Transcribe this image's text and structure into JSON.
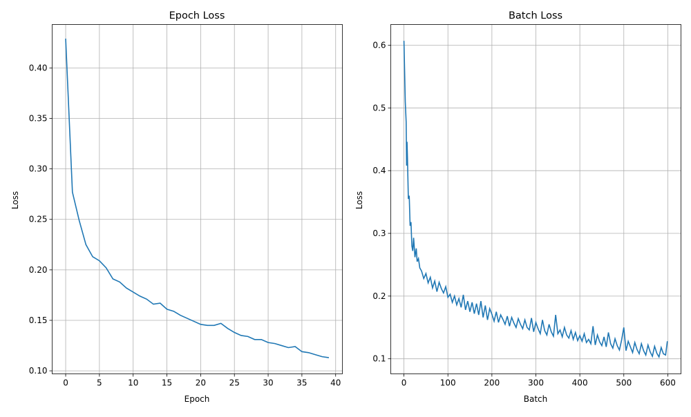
{
  "chart_data": [
    {
      "type": "line",
      "title": "Epoch Loss",
      "xlabel": "Epoch",
      "ylabel": "Loss",
      "xlim": [
        -2,
        41
      ],
      "ylim": [
        0.097,
        0.443
      ],
      "xticks": [
        0,
        5,
        10,
        15,
        20,
        25,
        30,
        35,
        40
      ],
      "xtick_labels": [
        "0",
        "5",
        "10",
        "15",
        "20",
        "25",
        "30",
        "35",
        "40"
      ],
      "yticks": [
        0.1,
        0.15,
        0.2,
        0.25,
        0.3,
        0.35,
        0.4
      ],
      "ytick_labels": [
        "0.10",
        "0.15",
        "0.20",
        "0.25",
        "0.30",
        "0.35",
        "0.40"
      ],
      "grid": true,
      "color": "#1f77b4",
      "series": [
        {
          "x": [
            0,
            1,
            2,
            3,
            4,
            5,
            6,
            7,
            8,
            9,
            10,
            11,
            12,
            13,
            14,
            15,
            16,
            17,
            18,
            19,
            20,
            21,
            22,
            23,
            24,
            25,
            26,
            27,
            28,
            29,
            30,
            31,
            32,
            33,
            34,
            35,
            36,
            37,
            38,
            39
          ],
          "values": [
            0.429,
            0.277,
            0.249,
            0.225,
            0.213,
            0.209,
            0.202,
            0.191,
            0.188,
            0.182,
            0.178,
            0.174,
            0.171,
            0.166,
            0.167,
            0.161,
            0.159,
            0.155,
            0.152,
            0.149,
            0.146,
            0.145,
            0.145,
            0.147,
            0.142,
            0.138,
            0.135,
            0.134,
            0.131,
            0.131,
            0.128,
            0.127,
            0.125,
            0.123,
            0.124,
            0.119,
            0.118,
            0.116,
            0.114,
            0.113
          ]
        }
      ]
    },
    {
      "type": "line",
      "title": "Batch Loss",
      "xlabel": "Batch",
      "ylabel": "Loss",
      "xlim": [
        -30,
        630
      ],
      "ylim": [
        0.076,
        0.633
      ],
      "xticks": [
        0,
        100,
        200,
        300,
        400,
        500,
        600
      ],
      "xtick_labels": [
        "0",
        "100",
        "200",
        "300",
        "400",
        "500",
        "600"
      ],
      "yticks": [
        0.1,
        0.2,
        0.3,
        0.4,
        0.5,
        0.6
      ],
      "ytick_labels": [
        "0.1",
        "0.2",
        "0.3",
        "0.4",
        "0.5",
        "0.6"
      ],
      "grid": true,
      "color": "#1f77b4",
      "series": [
        {
          "x": [
            0,
            3,
            5,
            6,
            7,
            8,
            10,
            12,
            14,
            16,
            18,
            20,
            22,
            25,
            28,
            30,
            33,
            36,
            40,
            45,
            50,
            55,
            60,
            65,
            70,
            75,
            80,
            85,
            90,
            95,
            100,
            105,
            110,
            115,
            120,
            125,
            130,
            135,
            140,
            145,
            150,
            155,
            160,
            165,
            170,
            175,
            180,
            185,
            190,
            195,
            200,
            205,
            210,
            215,
            220,
            225,
            230,
            235,
            240,
            245,
            250,
            255,
            260,
            265,
            270,
            275,
            280,
            285,
            290,
            295,
            300,
            305,
            310,
            315,
            320,
            325,
            330,
            335,
            340,
            345,
            350,
            355,
            360,
            365,
            370,
            375,
            380,
            385,
            390,
            395,
            400,
            405,
            410,
            415,
            420,
            425,
            430,
            435,
            440,
            445,
            450,
            455,
            460,
            465,
            470,
            475,
            480,
            485,
            490,
            495,
            500,
            505,
            510,
            515,
            520,
            525,
            530,
            535,
            540,
            545,
            550,
            555,
            560,
            565,
            570,
            575,
            580,
            585,
            590,
            595,
            599
          ],
          "values": [
            0.607,
            0.51,
            0.478,
            0.408,
            0.446,
            0.42,
            0.355,
            0.36,
            0.312,
            0.318,
            0.28,
            0.272,
            0.293,
            0.262,
            0.276,
            0.255,
            0.26,
            0.245,
            0.24,
            0.228,
            0.236,
            0.221,
            0.23,
            0.213,
            0.224,
            0.207,
            0.222,
            0.212,
            0.205,
            0.215,
            0.198,
            0.203,
            0.19,
            0.2,
            0.186,
            0.196,
            0.182,
            0.202,
            0.178,
            0.192,
            0.175,
            0.19,
            0.172,
            0.188,
            0.17,
            0.192,
            0.166,
            0.185,
            0.162,
            0.18,
            0.171,
            0.16,
            0.175,
            0.158,
            0.17,
            0.163,
            0.155,
            0.168,
            0.152,
            0.166,
            0.157,
            0.15,
            0.164,
            0.155,
            0.148,
            0.162,
            0.15,
            0.146,
            0.165,
            0.143,
            0.158,
            0.148,
            0.14,
            0.162,
            0.145,
            0.138,
            0.155,
            0.143,
            0.136,
            0.17,
            0.14,
            0.146,
            0.135,
            0.15,
            0.138,
            0.133,
            0.145,
            0.131,
            0.142,
            0.129,
            0.137,
            0.128,
            0.14,
            0.126,
            0.131,
            0.124,
            0.152,
            0.122,
            0.138,
            0.127,
            0.121,
            0.135,
            0.119,
            0.142,
            0.124,
            0.117,
            0.132,
            0.121,
            0.114,
            0.13,
            0.15,
            0.113,
            0.128,
            0.119,
            0.11,
            0.126,
            0.115,
            0.108,
            0.124,
            0.113,
            0.106,
            0.122,
            0.111,
            0.104,
            0.12,
            0.109,
            0.103,
            0.118,
            0.108,
            0.106,
            0.128
          ]
        }
      ]
    }
  ]
}
